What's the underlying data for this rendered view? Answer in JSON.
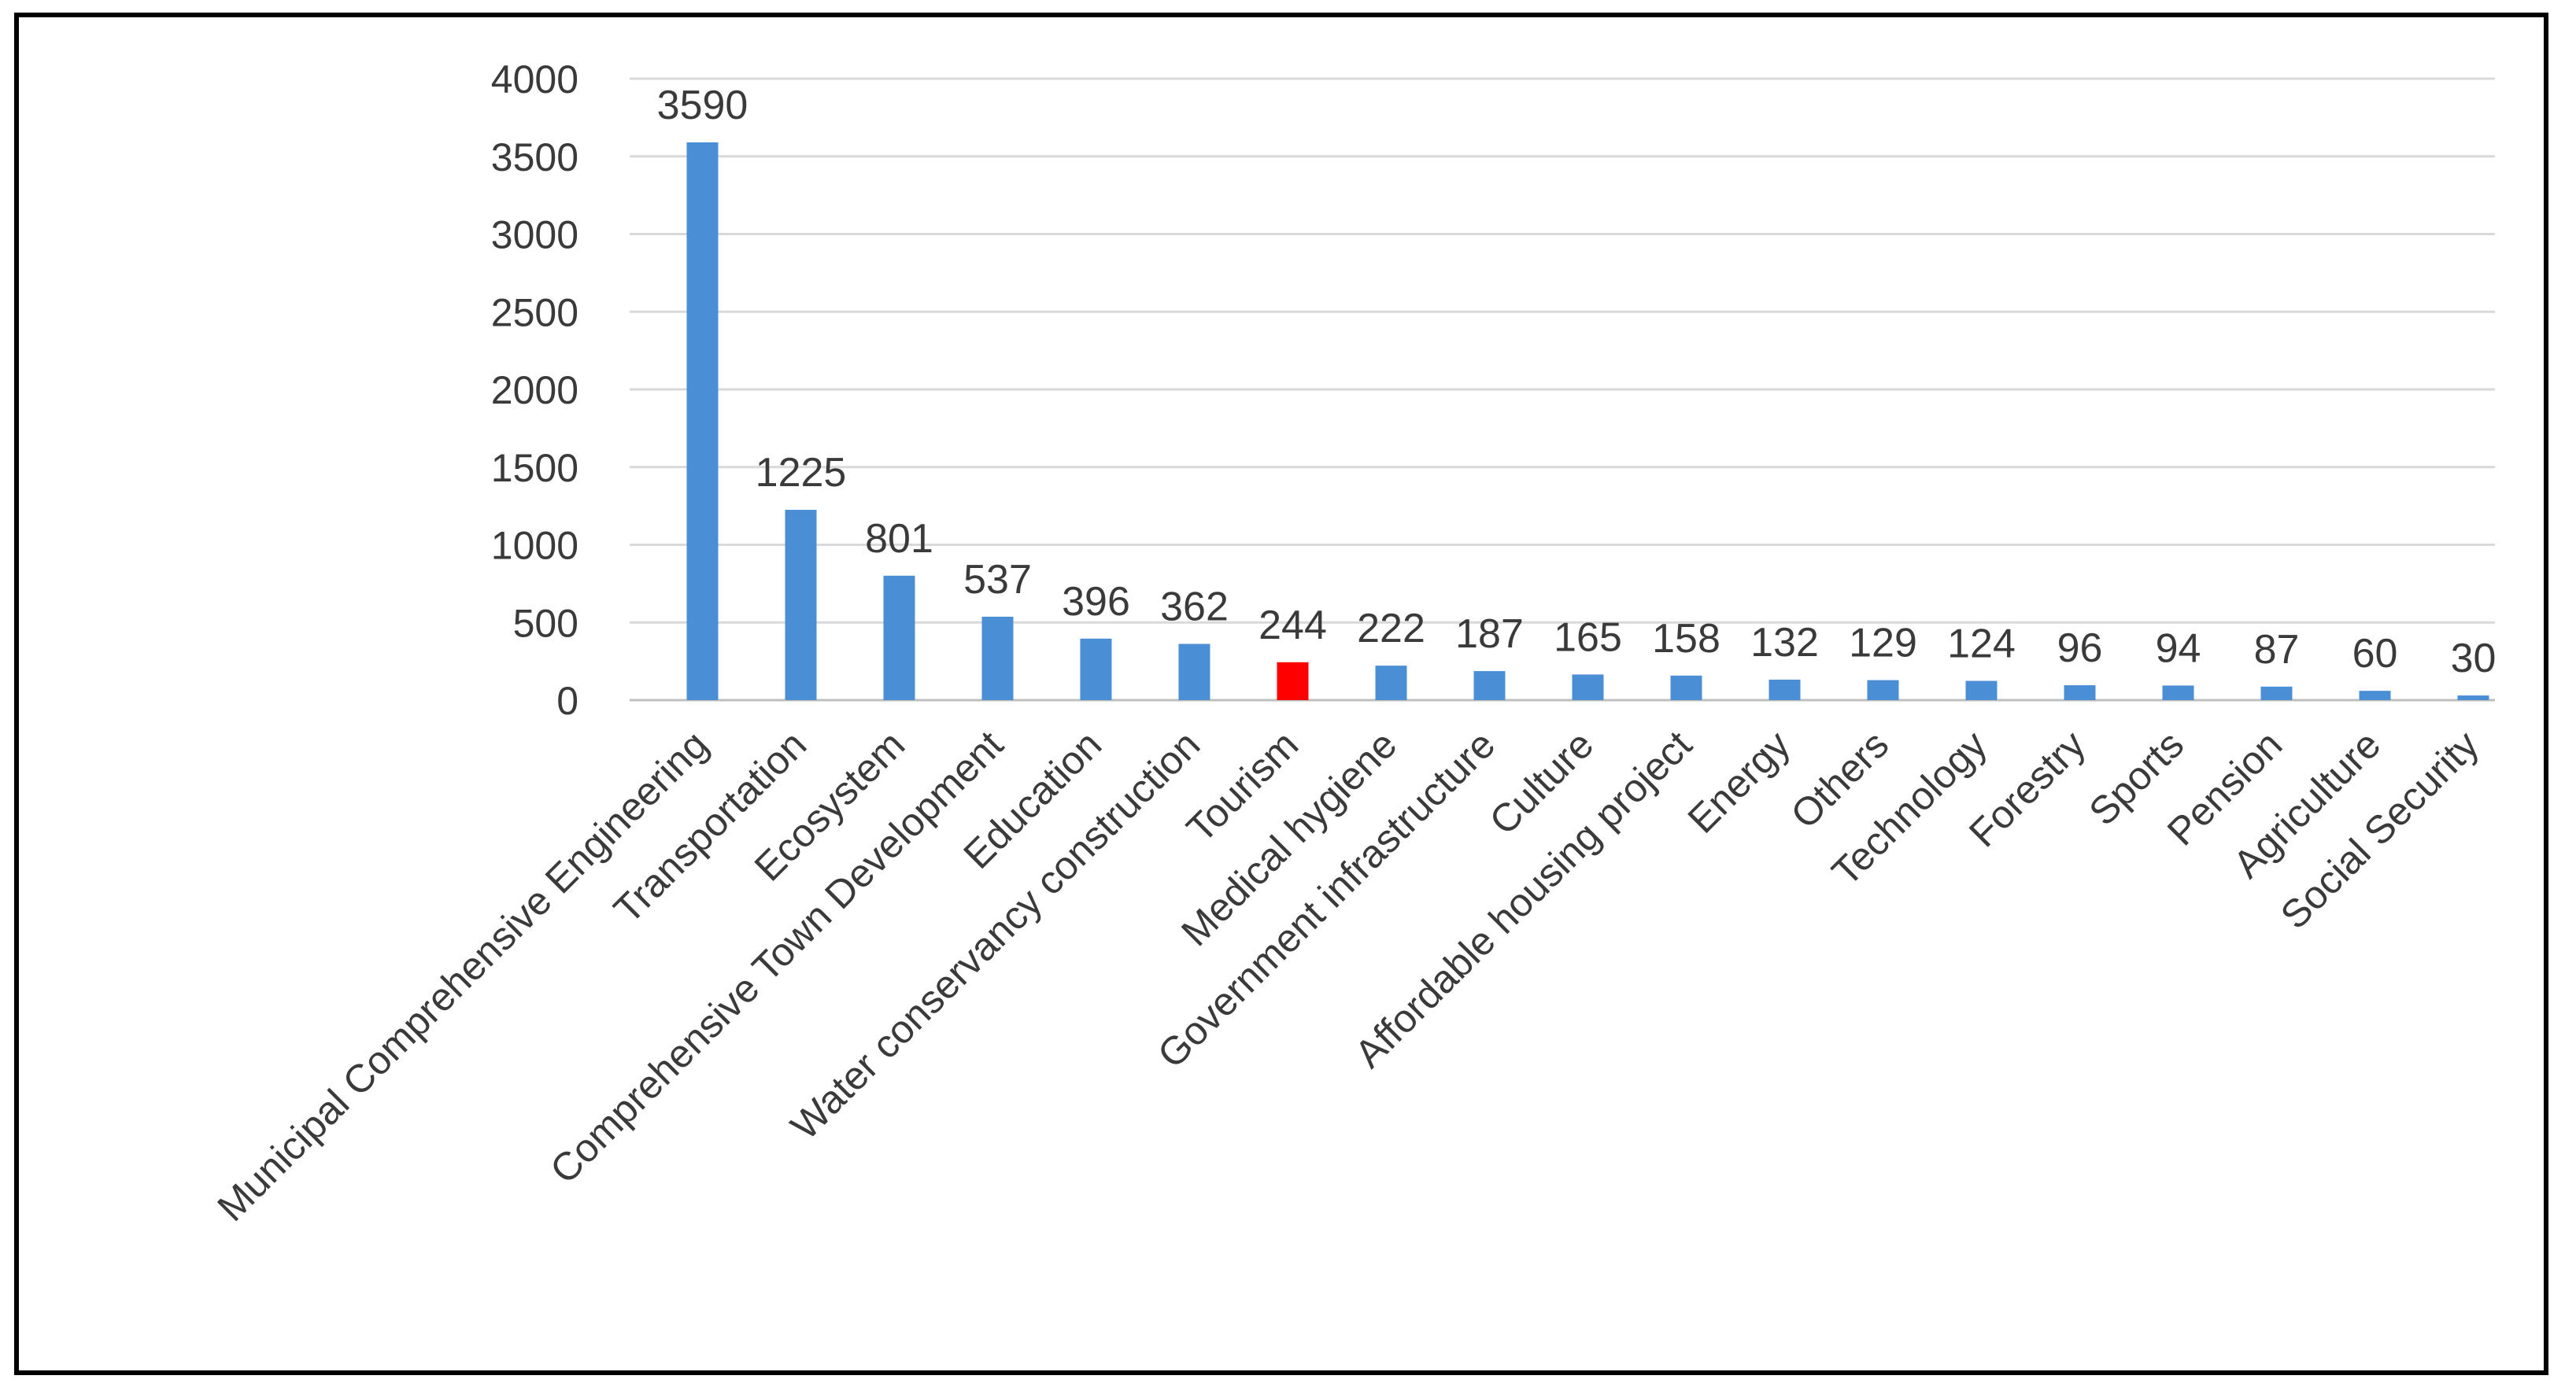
{
  "chart_data": {
    "type": "bar",
    "title": "",
    "xlabel": "",
    "ylabel": "",
    "ylim": [
      0,
      4000
    ],
    "yticks": [
      0,
      500,
      1000,
      1500,
      2000,
      2500,
      3000,
      3500,
      4000
    ],
    "grid": true,
    "legend": "none",
    "categories": [
      "Municipal Comprehensive Engineering",
      "Transportation",
      "Ecosystem",
      "Comprehensive Town Development",
      "Education",
      "Water conservancy construction",
      "Tourism",
      "Medical hygiene",
      "Government infrastructure",
      "Culture",
      "Affordable housing project",
      "Energy",
      "Others",
      "Technology",
      "Forestry",
      "Sports",
      "Pension",
      "Agriculture",
      "Social Security"
    ],
    "values": [
      3590,
      1225,
      801,
      537,
      396,
      362,
      244,
      222,
      187,
      165,
      158,
      132,
      129,
      124,
      96,
      94,
      87,
      60,
      30
    ],
    "colors": {
      "default": "#4a8fd6",
      "highlight": "#ff0000",
      "highlight_category": "Tourism"
    }
  }
}
